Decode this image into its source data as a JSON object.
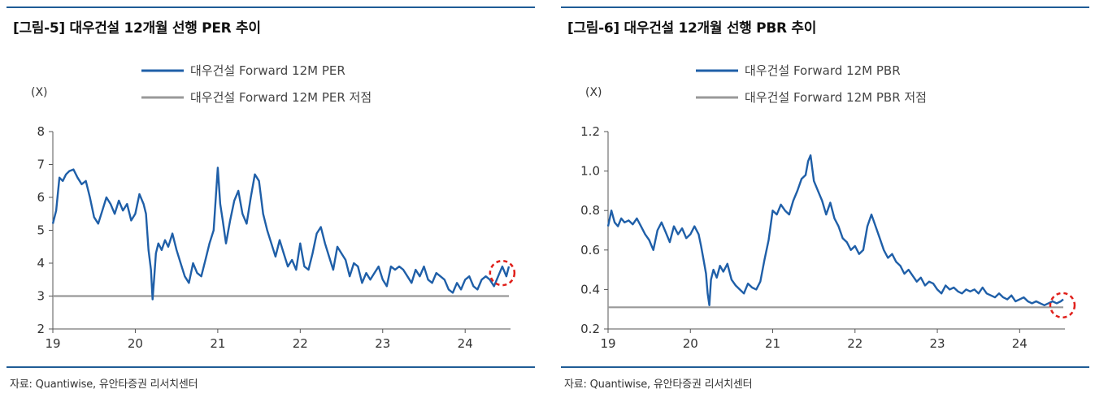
{
  "charts": [
    {
      "title": "[그림-5] 대우건설 12개월 선행 PER 추이",
      "source": "자료: Quantiwise, 유안타증권 리서치센터",
      "chart_data": {
        "type": "line",
        "yunit": "(X)",
        "ylim": [
          2,
          8
        ],
        "yticks": [
          2,
          3,
          4,
          5,
          6,
          7,
          8
        ],
        "xlim": [
          2019,
          2024.55
        ],
        "xticks": [
          2019,
          2020,
          2021,
          2022,
          2023,
          2024
        ],
        "xticklabels": [
          "19",
          "20",
          "21",
          "22",
          "23",
          "24"
        ],
        "legend_position": "top",
        "grid": false,
        "highlight": {
          "x": 2024.45,
          "y": 3.7
        },
        "series": [
          {
            "name": "대우건설 Forward 12M PER",
            "color": "#1f5fa8",
            "x": [
              2019.0,
              2019.04,
              2019.08,
              2019.12,
              2019.16,
              2019.2,
              2019.25,
              2019.3,
              2019.35,
              2019.4,
              2019.45,
              2019.5,
              2019.55,
              2019.6,
              2019.65,
              2019.7,
              2019.75,
              2019.8,
              2019.85,
              2019.9,
              2019.95,
              2020.0,
              2020.05,
              2020.1,
              2020.13,
              2020.16,
              2020.19,
              2020.21,
              2020.23,
              2020.25,
              2020.28,
              2020.32,
              2020.36,
              2020.4,
              2020.45,
              2020.5,
              2020.55,
              2020.6,
              2020.65,
              2020.7,
              2020.75,
              2020.8,
              2020.85,
              2020.9,
              2020.95,
              2021.0,
              2021.03,
              2021.06,
              2021.1,
              2021.15,
              2021.2,
              2021.25,
              2021.3,
              2021.35,
              2021.4,
              2021.45,
              2021.5,
              2021.55,
              2021.6,
              2021.65,
              2021.7,
              2021.75,
              2021.8,
              2021.85,
              2021.9,
              2021.95,
              2022.0,
              2022.05,
              2022.1,
              2022.15,
              2022.2,
              2022.25,
              2022.3,
              2022.35,
              2022.4,
              2022.45,
              2022.5,
              2022.55,
              2022.6,
              2022.65,
              2022.7,
              2022.75,
              2022.8,
              2022.85,
              2022.9,
              2022.95,
              2023.0,
              2023.05,
              2023.1,
              2023.15,
              2023.2,
              2023.25,
              2023.3,
              2023.35,
              2023.4,
              2023.45,
              2023.5,
              2023.55,
              2023.6,
              2023.65,
              2023.7,
              2023.75,
              2023.8,
              2023.85,
              2023.9,
              2023.95,
              2024.0,
              2024.05,
              2024.1,
              2024.15,
              2024.2,
              2024.25,
              2024.3,
              2024.35,
              2024.4,
              2024.45,
              2024.5,
              2024.53
            ],
            "y": [
              5.2,
              5.6,
              6.6,
              6.5,
              6.7,
              6.8,
              6.85,
              6.6,
              6.4,
              6.5,
              6.0,
              5.4,
              5.2,
              5.6,
              6.0,
              5.8,
              5.5,
              5.9,
              5.6,
              5.8,
              5.3,
              5.5,
              6.1,
              5.8,
              5.5,
              4.4,
              3.8,
              2.9,
              3.6,
              4.3,
              4.6,
              4.4,
              4.7,
              4.5,
              4.9,
              4.4,
              4.0,
              3.6,
              3.4,
              4.0,
              3.7,
              3.6,
              4.1,
              4.6,
              5.0,
              6.9,
              5.8,
              5.3,
              4.6,
              5.3,
              5.9,
              6.2,
              5.5,
              5.2,
              6.0,
              6.7,
              6.5,
              5.5,
              5.0,
              4.6,
              4.2,
              4.7,
              4.3,
              3.9,
              4.1,
              3.8,
              4.6,
              3.9,
              3.8,
              4.3,
              4.9,
              5.1,
              4.6,
              4.2,
              3.8,
              4.5,
              4.3,
              4.1,
              3.6,
              4.0,
              3.9,
              3.4,
              3.7,
              3.5,
              3.7,
              3.9,
              3.5,
              3.3,
              3.9,
              3.8,
              3.9,
              3.8,
              3.6,
              3.4,
              3.8,
              3.6,
              3.9,
              3.5,
              3.4,
              3.7,
              3.6,
              3.5,
              3.2,
              3.1,
              3.4,
              3.2,
              3.5,
              3.6,
              3.3,
              3.2,
              3.5,
              3.6,
              3.5,
              3.3,
              3.6,
              3.9,
              3.6,
              3.9
            ]
          },
          {
            "name": "대우건설 Forward 12M PER 저점",
            "color": "#999999",
            "x": [
              2019.0,
              2024.53
            ],
            "y": [
              3.0,
              3.0
            ]
          }
        ]
      }
    },
    {
      "title": "[그림-6] 대우건설 12개월 선행 PBR 추이",
      "source": "자료: Quantiwise, 유안타증권 리서치센터",
      "chart_data": {
        "type": "line",
        "yunit": "(X)",
        "ylim": [
          0.2,
          1.2
        ],
        "yticks": [
          0.2,
          0.4,
          0.6,
          0.8,
          1.0,
          1.2
        ],
        "yticklabels": [
          "0.2",
          "0.4",
          "0.6",
          "0.8",
          "1.0",
          "1.2"
        ],
        "xlim": [
          2019,
          2024.55
        ],
        "xticks": [
          2019,
          2020,
          2021,
          2022,
          2023,
          2024
        ],
        "xticklabels": [
          "19",
          "20",
          "21",
          "22",
          "23",
          "24"
        ],
        "legend_position": "top",
        "grid": false,
        "highlight": {
          "x": 2024.52,
          "y": 0.32
        },
        "series": [
          {
            "name": "대우건설 Forward 12M PBR",
            "color": "#1f5fa8",
            "x": [
              2019.0,
              2019.04,
              2019.08,
              2019.12,
              2019.16,
              2019.2,
              2019.25,
              2019.3,
              2019.35,
              2019.4,
              2019.45,
              2019.5,
              2019.55,
              2019.6,
              2019.65,
              2019.7,
              2019.75,
              2019.8,
              2019.85,
              2019.9,
              2019.95,
              2020.0,
              2020.05,
              2020.1,
              2020.13,
              2020.16,
              2020.19,
              2020.21,
              2020.23,
              2020.25,
              2020.28,
              2020.32,
              2020.36,
              2020.4,
              2020.45,
              2020.5,
              2020.55,
              2020.6,
              2020.65,
              2020.7,
              2020.75,
              2020.8,
              2020.85,
              2020.9,
              2020.95,
              2021.0,
              2021.05,
              2021.1,
              2021.15,
              2021.2,
              2021.25,
              2021.3,
              2021.35,
              2021.4,
              2021.43,
              2021.46,
              2021.5,
              2021.55,
              2021.6,
              2021.65,
              2021.7,
              2021.75,
              2021.8,
              2021.85,
              2021.9,
              2021.95,
              2022.0,
              2022.05,
              2022.1,
              2022.15,
              2022.2,
              2022.25,
              2022.3,
              2022.35,
              2022.4,
              2022.45,
              2022.5,
              2022.55,
              2022.6,
              2022.65,
              2022.7,
              2022.75,
              2022.8,
              2022.85,
              2022.9,
              2022.95,
              2023.0,
              2023.05,
              2023.1,
              2023.15,
              2023.2,
              2023.25,
              2023.3,
              2023.35,
              2023.4,
              2023.45,
              2023.5,
              2023.55,
              2023.6,
              2023.65,
              2023.7,
              2023.75,
              2023.8,
              2023.85,
              2023.9,
              2023.95,
              2024.0,
              2024.05,
              2024.1,
              2024.15,
              2024.2,
              2024.25,
              2024.3,
              2024.35,
              2024.4,
              2024.45,
              2024.5,
              2024.53
            ],
            "y": [
              0.72,
              0.8,
              0.74,
              0.72,
              0.76,
              0.74,
              0.75,
              0.73,
              0.76,
              0.72,
              0.68,
              0.65,
              0.6,
              0.7,
              0.74,
              0.69,
              0.64,
              0.72,
              0.68,
              0.71,
              0.66,
              0.68,
              0.72,
              0.68,
              0.62,
              0.55,
              0.48,
              0.38,
              0.32,
              0.45,
              0.5,
              0.46,
              0.52,
              0.49,
              0.53,
              0.45,
              0.42,
              0.4,
              0.38,
              0.43,
              0.41,
              0.4,
              0.44,
              0.55,
              0.65,
              0.8,
              0.78,
              0.83,
              0.8,
              0.78,
              0.85,
              0.9,
              0.96,
              0.98,
              1.05,
              1.08,
              0.95,
              0.9,
              0.85,
              0.78,
              0.84,
              0.76,
              0.72,
              0.66,
              0.64,
              0.6,
              0.62,
              0.58,
              0.6,
              0.72,
              0.78,
              0.72,
              0.66,
              0.6,
              0.56,
              0.58,
              0.54,
              0.52,
              0.48,
              0.5,
              0.47,
              0.44,
              0.46,
              0.42,
              0.44,
              0.43,
              0.4,
              0.38,
              0.42,
              0.4,
              0.41,
              0.39,
              0.38,
              0.4,
              0.39,
              0.4,
              0.38,
              0.41,
              0.38,
              0.37,
              0.36,
              0.38,
              0.36,
              0.35,
              0.37,
              0.34,
              0.35,
              0.36,
              0.34,
              0.33,
              0.34,
              0.33,
              0.32,
              0.33,
              0.34,
              0.33,
              0.34,
              0.35
            ]
          },
          {
            "name": "대우건설 Forward 12M PBR 저점",
            "color": "#999999",
            "x": [
              2019.0,
              2024.53
            ],
            "y": [
              0.31,
              0.31
            ]
          }
        ]
      }
    }
  ]
}
